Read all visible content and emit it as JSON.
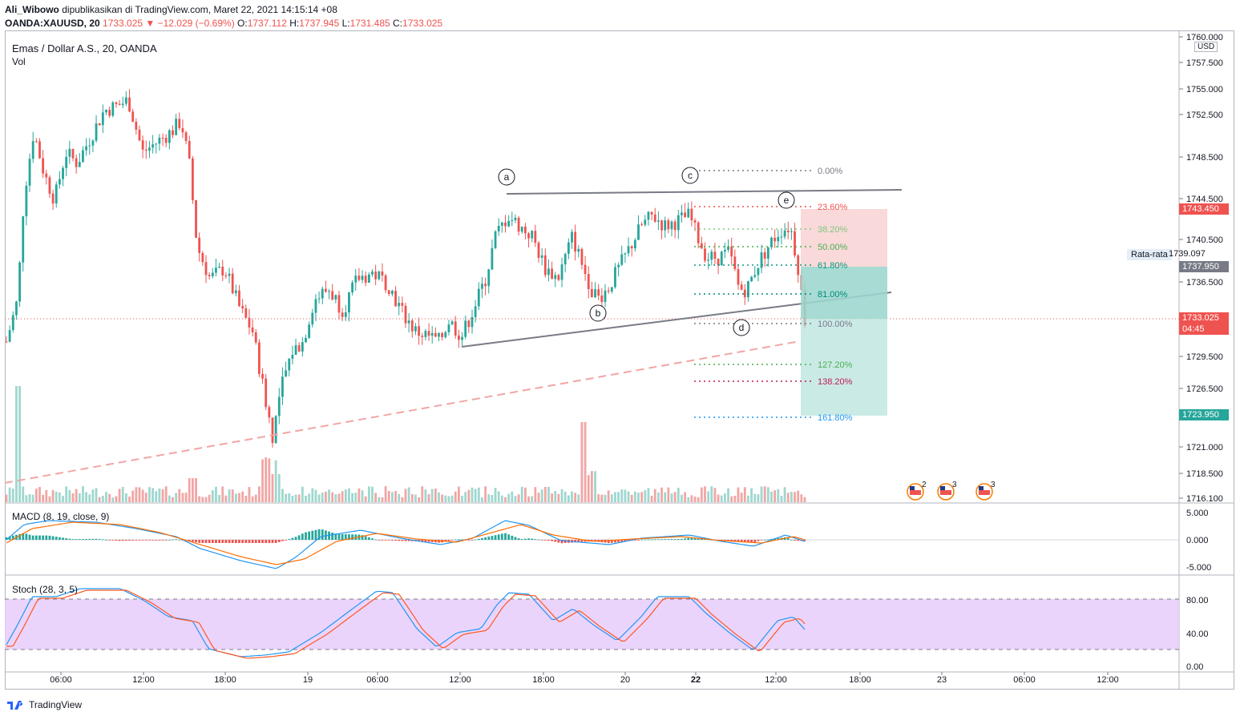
{
  "header": {
    "line1_user": "Ali_Wibowo",
    "line1_rest": " dipublikasikan di TradingView.com, Maret 22, 2021 14:15:14 +08",
    "line2_symbol": "OANDA:XAUUSD, 20",
    "line2_change": " 1733.025 ▼ −12.029 (−0.69%)",
    "o_label": "O:",
    "o_val": "1737.112",
    "h_label": "H:",
    "h_val": "1737.945",
    "l_label": "L:",
    "l_val": "1731.485",
    "c_label": "C:",
    "c_val": "1733.025"
  },
  "legend": {
    "title": "Emas / Dollar A.S., 20, OANDA",
    "vol": "Vol",
    "macd": "MACD (8, 19, close, 9)",
    "stoch": "Stoch (28, 3, 5)"
  },
  "price_axis": {
    "currency": "USD",
    "ticks": [
      "1760.000",
      "1757.500",
      "1755.000",
      "1752.500",
      "1748.500",
      "1744.500",
      "1740.500",
      "1736.500",
      "1729.500",
      "1726.500",
      "1721.000",
      "1718.500",
      "1716.100"
    ]
  },
  "price_labels": {
    "current": "1733.025",
    "countdown": "04:45",
    "stop": "1743.450",
    "entry": "1737.950",
    "target": "1723.950",
    "avg_label": "Rata-rata",
    "avg_value": "1739.097"
  },
  "macd_axis": {
    "ticks": [
      "5.000",
      "0.000",
      "-5.000"
    ]
  },
  "stoch_axis": {
    "ticks": [
      "80.00",
      "40.00",
      "0.00"
    ]
  },
  "time_axis": {
    "ticks": [
      "06:00",
      "12:00",
      "18:00",
      "19",
      "06:00",
      "12:00",
      "18:00",
      "20",
      "22",
      "12:00",
      "18:00",
      "23",
      "06:00",
      "12:00"
    ]
  },
  "fib_levels": [
    "0.00%",
    "23.60%",
    "38.20%",
    "50.00%",
    "61.80%",
    "81.00%",
    "100.00%",
    "127.20%",
    "138.20%",
    "161.80%"
  ],
  "wave_labels": [
    "a",
    "b",
    "c",
    "d",
    "e"
  ],
  "event_counts": [
    "2",
    "3",
    "3"
  ],
  "colors": {
    "up": "#26a69a",
    "down": "#ef5350",
    "up_vol": "#9fd7cf",
    "down_vol": "#f1a6a4",
    "stoch_band": "#e7ccfa",
    "macd_line": "#2196f3",
    "signal_line": "#ff6d00"
  },
  "brand": "TradingView",
  "chart_data": {
    "type": "candlestick",
    "symbol": "OANDA:XAUUSD",
    "timeframe": "20",
    "last": {
      "open": 1737.112,
      "high": 1737.945,
      "low": 1731.485,
      "close": 1733.025,
      "change": -12.029,
      "change_pct": -0.69
    },
    "position": {
      "stop": 1743.45,
      "entry": 1737.95,
      "target": 1723.95
    },
    "ylim": [
      1716.1,
      1760.0
    ]
  }
}
